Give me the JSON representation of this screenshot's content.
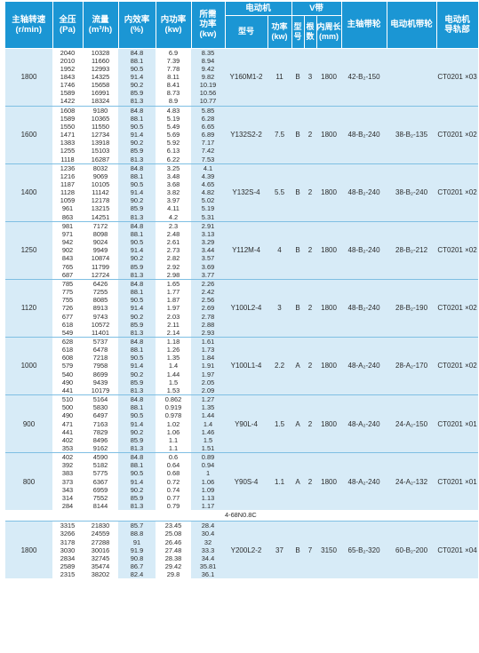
{
  "headers": {
    "speed": "主轴转速\n(r/min)",
    "pressure": "全压\n(Pa)",
    "flow": "流量\n(m³/h)",
    "inner_eff": "内效率\n(%)",
    "inner_power": "内功率\n(kw)",
    "req_power": "所需\n功率\n(kw)",
    "motor": "电动机",
    "motor_model": "型号",
    "motor_power": "功率\n(kw)",
    "vbelt": "V带",
    "vbelt_type": "型\n号",
    "vbelt_count": "根\n数",
    "vbelt_length": "内周长\n(mm)",
    "main_pulley": "主轴带轮",
    "motor_pulley": "电动机带轮",
    "motor_rail": "电动机\n导轨部"
  },
  "groups": [
    {
      "speed": "1800",
      "model": "Y160M1-2",
      "power": "11",
      "vtype": "B",
      "vcount": "3",
      "vlen": "1800",
      "main_pulley": "42-B₂-150",
      "motor_pulley": "",
      "rail": "CT0201 ×03",
      "rows": [
        [
          "2040",
          "10328",
          "84.8",
          "6.9",
          "8.35"
        ],
        [
          "2010",
          "11660",
          "88.1",
          "7.39",
          "8.94"
        ],
        [
          "1952",
          "12993",
          "90.5",
          "7.78",
          "9.42"
        ],
        [
          "1843",
          "14325",
          "91.4",
          "8.11",
          "9.82"
        ],
        [
          "1746",
          "15658",
          "90.2",
          "8.41",
          "10.19"
        ],
        [
          "1589",
          "16991",
          "85.9",
          "8.73",
          "10.56"
        ],
        [
          "1422",
          "18324",
          "81.3",
          "8.9",
          "10.77"
        ]
      ]
    },
    {
      "speed": "1600",
      "model": "Y132S2-2",
      "power": "7.5",
      "vtype": "B",
      "vcount": "2",
      "vlen": "1800",
      "main_pulley": "48-B₂-240",
      "motor_pulley": "38-B₂-135",
      "rail": "CT0201 ×02",
      "rows": [
        [
          "1608",
          "9180",
          "84.8",
          "4.83",
          "5.85"
        ],
        [
          "1589",
          "10365",
          "88.1",
          "5.19",
          "6.28"
        ],
        [
          "1550",
          "11550",
          "90.5",
          "5.49",
          "6.65"
        ],
        [
          "1471",
          "12734",
          "91.4",
          "5.69",
          "6.89"
        ],
        [
          "1383",
          "13918",
          "90.2",
          "5.92",
          "7.17"
        ],
        [
          "1255",
          "15103",
          "85.9",
          "6.13",
          "7.42"
        ],
        [
          "1118",
          "16287",
          "81.3",
          "6.22",
          "7.53"
        ]
      ]
    },
    {
      "speed": "1400",
      "model": "Y132S-4",
      "power": "5.5",
      "vtype": "B",
      "vcount": "2",
      "vlen": "1800",
      "main_pulley": "48-B₂-240",
      "motor_pulley": "38-B₂-240",
      "rail": "CT0201 ×02",
      "rows": [
        [
          "1236",
          "8032",
          "84.8",
          "3.25",
          "4.1"
        ],
        [
          "1216",
          "9069",
          "88.1",
          "3.48",
          "4.39"
        ],
        [
          "1187",
          "10105",
          "90.5",
          "3.68",
          "4.65"
        ],
        [
          "1128",
          "11142",
          "91.4",
          "3.82",
          "4.82"
        ],
        [
          "1059",
          "12178",
          "90.2",
          "3.97",
          "5.02"
        ],
        [
          "961",
          "13215",
          "85.9",
          "4.11",
          "5.19"
        ],
        [
          "863",
          "14251",
          "81.3",
          "4.2",
          "5.31"
        ]
      ]
    },
    {
      "speed": "1250",
      "model": "Y112M-4",
      "power": "4",
      "vtype": "B",
      "vcount": "2",
      "vlen": "1800",
      "main_pulley": "48-B₂-240",
      "motor_pulley": "28-B₂-212",
      "rail": "CT0201 ×02",
      "rows": [
        [
          "981",
          "7172",
          "84.8",
          "2.3",
          "2.91"
        ],
        [
          "971",
          "8098",
          "88.1",
          "2.48",
          "3.13"
        ],
        [
          "942",
          "9024",
          "90.5",
          "2.61",
          "3.29"
        ],
        [
          "902",
          "9949",
          "91.4",
          "2.73",
          "3.44"
        ],
        [
          "843",
          "10874",
          "90.2",
          "2.82",
          "3.57"
        ],
        [
          "765",
          "11799",
          "85.9",
          "2.92",
          "3.69"
        ],
        [
          "687",
          "12724",
          "81.3",
          "2.98",
          "3.77"
        ]
      ]
    },
    {
      "speed": "1120",
      "model": "Y100L2-4",
      "power": "3",
      "vtype": "B",
      "vcount": "2",
      "vlen": "1800",
      "main_pulley": "48-B₂-240",
      "motor_pulley": "28-B₂-190",
      "rail": "CT0201 ×02",
      "rows": [
        [
          "785",
          "6426",
          "84.8",
          "1.65",
          "2.26"
        ],
        [
          "775",
          "7255",
          "88.1",
          "1.77",
          "2.42"
        ],
        [
          "755",
          "8085",
          "90.5",
          "1.87",
          "2.56"
        ],
        [
          "726",
          "8913",
          "91.4",
          "1.97",
          "2.69"
        ],
        [
          "677",
          "9743",
          "90.2",
          "2.03",
          "2.78"
        ],
        [
          "618",
          "10572",
          "85.9",
          "2.11",
          "2.88"
        ],
        [
          "549",
          "11401",
          "81.3",
          "2.14",
          "2.93"
        ]
      ]
    },
    {
      "speed": "1000",
      "model": "Y100L1-4",
      "power": "2.2",
      "vtype": "A",
      "vcount": "2",
      "vlen": "1800",
      "main_pulley": "48-A₂-240",
      "motor_pulley": "28-A₂-170",
      "rail": "CT0201 ×02",
      "rows": [
        [
          "628",
          "5737",
          "84.8",
          "1.18",
          "1.61"
        ],
        [
          "618",
          "6478",
          "88.1",
          "1.26",
          "1.73"
        ],
        [
          "608",
          "7218",
          "90.5",
          "1.35",
          "1.84"
        ],
        [
          "579",
          "7958",
          "91.4",
          "1.4",
          "1.91"
        ],
        [
          "540",
          "8699",
          "90.2",
          "1.44",
          "1.97"
        ],
        [
          "490",
          "9439",
          "85.9",
          "1.5",
          "2.05"
        ],
        [
          "441",
          "10179",
          "81.3",
          "1.53",
          "2.09"
        ]
      ]
    },
    {
      "speed": "900",
      "model": "Y90L-4",
      "power": "1.5",
      "vtype": "A",
      "vcount": "2",
      "vlen": "1800",
      "main_pulley": "48-A₂-240",
      "motor_pulley": "24-A₂-150",
      "rail": "CT0201 ×01",
      "rows": [
        [
          "510",
          "5164",
          "84.8",
          "0.862",
          "1.27"
        ],
        [
          "500",
          "5830",
          "88.1",
          "0.919",
          "1.35"
        ],
        [
          "490",
          "6497",
          "90.5",
          "0.978",
          "1.44"
        ],
        [
          "471",
          "7163",
          "91.4",
          "1.02",
          "1.4"
        ],
        [
          "441",
          "7829",
          "90.2",
          "1.06",
          "1.46"
        ],
        [
          "402",
          "8496",
          "85.9",
          "1.1",
          "1.5"
        ],
        [
          "353",
          "9162",
          "81.3",
          "1.1",
          "1.51"
        ]
      ]
    },
    {
      "speed": "800",
      "model": "Y90S-4",
      "power": "1.1",
      "vtype": "A",
      "vcount": "2",
      "vlen": "1800",
      "main_pulley": "48-A₂-240",
      "motor_pulley": "24-A₂-132",
      "rail": "CT0201 ×01",
      "rows": [
        [
          "402",
          "4590",
          "84.8",
          "0.6",
          "0.89"
        ],
        [
          "392",
          "5182",
          "88.1",
          "0.64",
          "0.94"
        ],
        [
          "383",
          "5775",
          "90.5",
          "0.68",
          "1"
        ],
        [
          "373",
          "6367",
          "91.4",
          "0.72",
          "1.06"
        ],
        [
          "343",
          "6959",
          "90.2",
          "0.74",
          "1.09"
        ],
        [
          "314",
          "7552",
          "85.9",
          "0.77",
          "1.13"
        ],
        [
          "284",
          "8144",
          "81.3",
          "0.79",
          "1.17"
        ]
      ]
    }
  ],
  "section_label": "4-68N0.8C",
  "groups2": [
    {
      "speed": "1800",
      "model": "Y200L2-2",
      "power": "37",
      "vtype": "B",
      "vcount": "7",
      "vlen": "3150",
      "main_pulley": "65-B₂-320",
      "motor_pulley": "60-B₂-200",
      "rail": "CT0201 ×04",
      "rows": [
        [
          "3315",
          "21830",
          "85.7",
          "23.45",
          "28.4"
        ],
        [
          "3266",
          "24559",
          "88.8",
          "25.08",
          "30.4"
        ],
        [
          "3178",
          "27288",
          "91",
          "26.46",
          "32"
        ],
        [
          "3030",
          "30016",
          "91.9",
          "27.48",
          "33.3"
        ],
        [
          "2834",
          "32745",
          "90.8",
          "28.38",
          "34.4"
        ],
        [
          "2589",
          "35474",
          "86.7",
          "29.42",
          "35.81"
        ],
        [
          "2315",
          "38202",
          "82.4",
          "29.8",
          "36.1"
        ]
      ]
    }
  ]
}
